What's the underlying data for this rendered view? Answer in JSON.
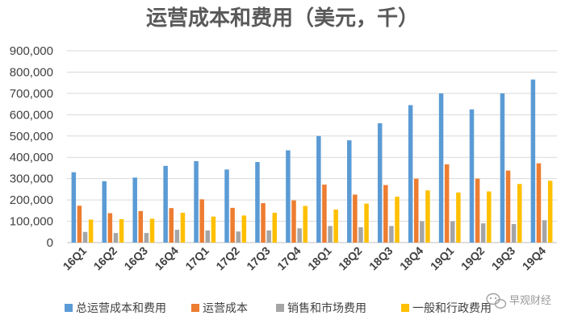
{
  "chart_data": {
    "type": "bar",
    "title": "运营成本和费用（美元，千）",
    "categories": [
      "16Q1",
      "16Q2",
      "16Q3",
      "16Q4",
      "17Q1",
      "17Q2",
      "17Q3",
      "17Q4",
      "18Q1",
      "18Q2",
      "18Q3",
      "18Q4",
      "19Q1",
      "19Q2",
      "19Q3",
      "19Q4"
    ],
    "series": [
      {
        "name": "总运营成本和费用",
        "color": "#5b9bd5",
        "values": [
          330000,
          288000,
          305000,
          360000,
          382000,
          343000,
          378000,
          433000,
          500000,
          480000,
          560000,
          645000,
          700000,
          625000,
          700000,
          765000
        ]
      },
      {
        "name": "运营成本",
        "color": "#ed7d31",
        "values": [
          173000,
          138000,
          148000,
          162000,
          203000,
          163000,
          185000,
          198000,
          272000,
          225000,
          270000,
          300000,
          367000,
          300000,
          338000,
          372000
        ]
      },
      {
        "name": "销售和市场费用",
        "color": "#a5a5a5",
        "values": [
          50000,
          45000,
          45000,
          60000,
          57000,
          52000,
          57000,
          67000,
          78000,
          72000,
          78000,
          100000,
          100000,
          90000,
          87000,
          105000
        ]
      },
      {
        "name": "一般和行政费用",
        "color": "#ffc000",
        "values": [
          108000,
          110000,
          112000,
          140000,
          122000,
          127000,
          140000,
          172000,
          155000,
          183000,
          215000,
          245000,
          235000,
          240000,
          275000,
          290000
        ]
      }
    ],
    "yticks": [
      "0",
      "100,000",
      "200,000",
      "300,000",
      "400,000",
      "500,000",
      "600,000",
      "700,000",
      "800,000",
      "900,000"
    ],
    "ylim": [
      0,
      900000
    ],
    "grid": true,
    "legend": "bottom"
  },
  "watermark": {
    "text": "早观财经",
    "icon": "wechat-icon"
  }
}
